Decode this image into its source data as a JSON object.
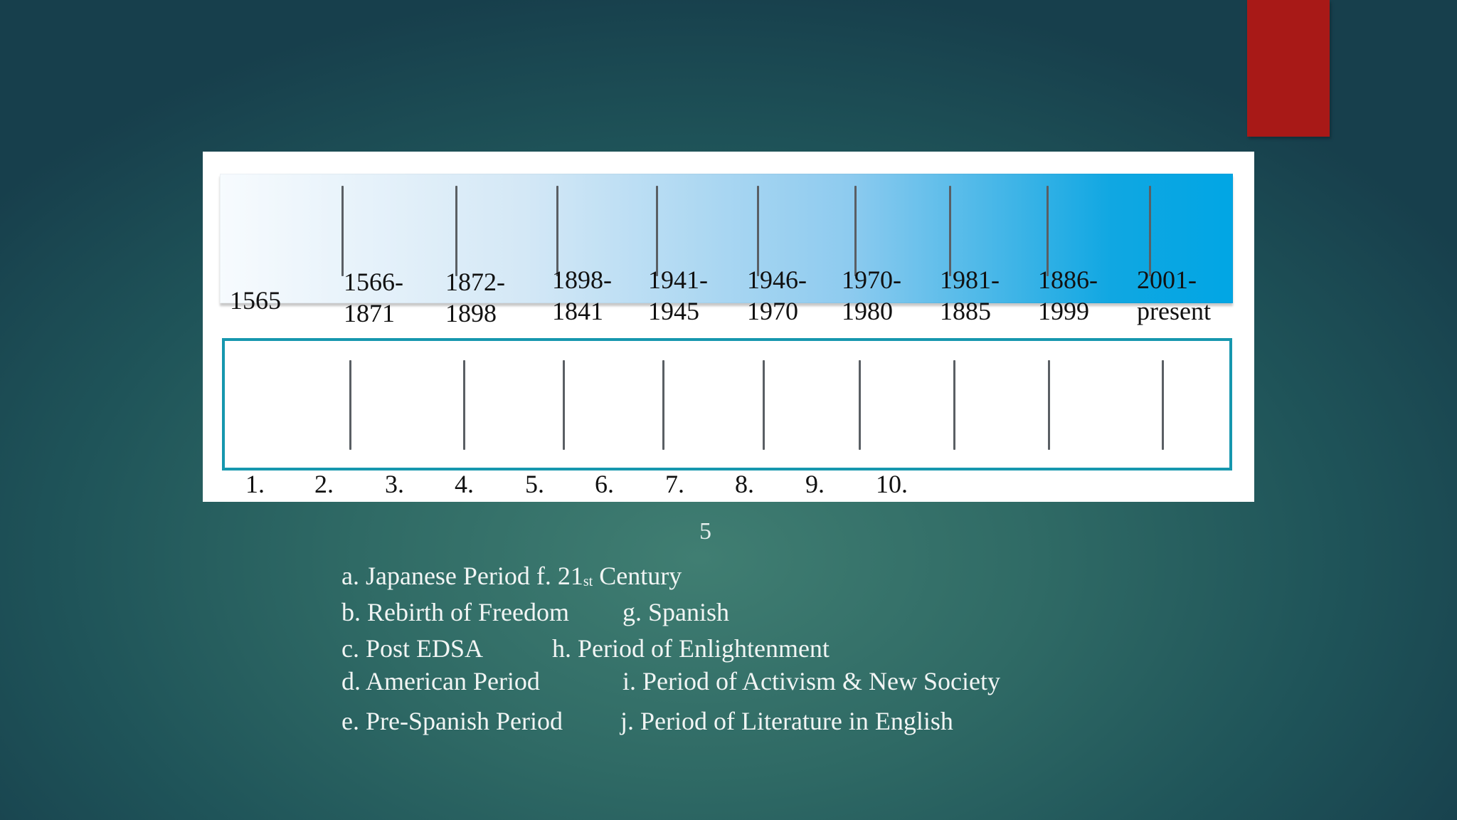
{
  "timeline": {
    "years": [
      {
        "line1": "1565",
        "line2": ""
      },
      {
        "line1": "1566-",
        "line2": "1871"
      },
      {
        "line1": "1872-",
        "line2": "1898"
      },
      {
        "line1": "1898-",
        "line2": "1841"
      },
      {
        "line1": "1941-",
        "line2": "1945"
      },
      {
        "line1": "1946-",
        "line2": "1970"
      },
      {
        "line1": "1970-",
        "line2": "1980"
      },
      {
        "line1": "1981-",
        "line2": "1885"
      },
      {
        "line1": "1886-",
        "line2": "1999"
      },
      {
        "line1": "2001-",
        "line2": "present"
      }
    ],
    "numbers": [
      "1.",
      "2.",
      "3.",
      "4.",
      "5.",
      "6.",
      "7.",
      "8.",
      "9.",
      "10."
    ]
  },
  "page_number": "5",
  "options": {
    "a": {
      "text": "a.  Japanese Period f. 21",
      "sup": "st",
      "after": " Century"
    },
    "b": "b.  Rebirth of Freedom",
    "g": "g. Spanish",
    "c": "c.  Post EDSA",
    "h": "h. Period of Enlightenment",
    "d": "d.  American Period",
    "i": "i. Period of Activism & New Society",
    "e": "e.  Pre-Spanish Period",
    "j": "j. Period of Literature in English"
  },
  "colors": {
    "accent": "#a81917",
    "box_border": "#1697ae",
    "band_end": "#01a6e4"
  }
}
